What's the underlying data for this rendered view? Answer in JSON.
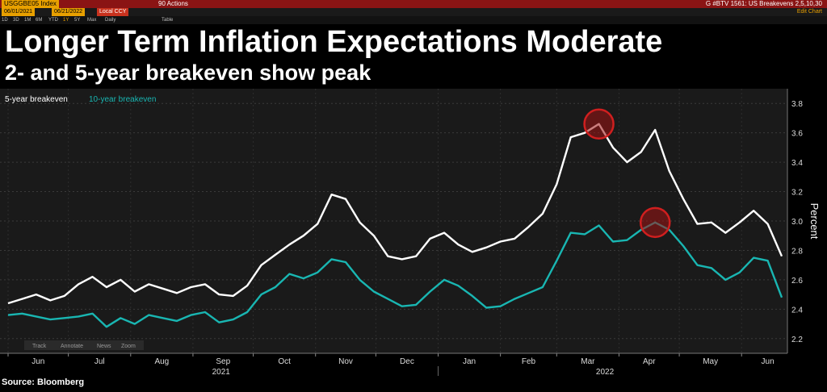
{
  "toolbar": {
    "ticker": "USGGBE05 Index",
    "actions": "90 Actions",
    "right_text": "G #BTV 1561: US Breakevens 2,5,10,30",
    "date_start": "06/01/2021",
    "date_end": "06/21/2022",
    "currency": "Local CCY",
    "periods": [
      "1D",
      "3D",
      "1M",
      "6M",
      "YTD",
      "1Y",
      "5Y",
      "Max"
    ],
    "frequency": "Daily",
    "table_label": "Table",
    "edit_chart": "Edit Chart",
    "tools": [
      "Track",
      "Annotate",
      "News",
      "Zoom"
    ]
  },
  "header": {
    "title": "Longer Term Inflation Expectations Moderate",
    "subtitle": "2- and 5-year breakeven show peak"
  },
  "footer": {
    "source": "Source: Bloomberg"
  },
  "colors": {
    "five_year": "#ffffff",
    "ten_year": "#19b6b2",
    "highlight": "#d01f1f",
    "background": "#000000",
    "plot_bg": "#1a1a1a"
  },
  "chart_data": {
    "type": "line",
    "title": "Longer Term Inflation Expectations Moderate",
    "subtitle": "2- and 5-year breakeven show peak",
    "ylabel": "Percent",
    "xlabel": "",
    "ylim": [
      2.1,
      3.9
    ],
    "yticks": [
      2.2,
      2.4,
      2.6,
      2.8,
      3.0,
      3.2,
      3.4,
      3.6,
      3.8
    ],
    "ytick_labels": [
      "2.2",
      "2.4",
      "2.6",
      "2.8",
      "3.0",
      "3.2",
      "3.4",
      "3.6",
      "3.8"
    ],
    "xlim": [
      "2021-06-01",
      "2022-06-21"
    ],
    "x_months": [
      {
        "label": "Jun",
        "date": "2021-06-01"
      },
      {
        "label": "Jul",
        "date": "2021-07-01"
      },
      {
        "label": "Aug",
        "date": "2021-08-01"
      },
      {
        "label": "Sep",
        "date": "2021-09-01"
      },
      {
        "label": "Oct",
        "date": "2021-10-01"
      },
      {
        "label": "Nov",
        "date": "2021-11-01"
      },
      {
        "label": "Dec",
        "date": "2021-12-01"
      },
      {
        "label": "Jan",
        "date": "2022-01-01"
      },
      {
        "label": "Feb",
        "date": "2022-02-01"
      },
      {
        "label": "Mar",
        "date": "2022-03-01"
      },
      {
        "label": "Apr",
        "date": "2022-04-01"
      },
      {
        "label": "May",
        "date": "2022-05-01"
      },
      {
        "label": "Jun",
        "date": "2022-06-01"
      }
    ],
    "x_years": [
      {
        "label": "2021",
        "date": "2021-09-15"
      },
      {
        "label": "2022",
        "date": "2022-03-25"
      }
    ],
    "legend_position": "top-left",
    "grid": true,
    "series": [
      {
        "name": "5-year breakeven",
        "color": "#ffffff",
        "points": [
          [
            "2021-06-01",
            2.44
          ],
          [
            "2021-06-08",
            2.47
          ],
          [
            "2021-06-15",
            2.5
          ],
          [
            "2021-06-22",
            2.46
          ],
          [
            "2021-06-29",
            2.49
          ],
          [
            "2021-07-06",
            2.57
          ],
          [
            "2021-07-13",
            2.62
          ],
          [
            "2021-07-20",
            2.55
          ],
          [
            "2021-07-27",
            2.6
          ],
          [
            "2021-08-03",
            2.52
          ],
          [
            "2021-08-10",
            2.57
          ],
          [
            "2021-08-17",
            2.54
          ],
          [
            "2021-08-24",
            2.51
          ],
          [
            "2021-08-31",
            2.55
          ],
          [
            "2021-09-07",
            2.57
          ],
          [
            "2021-09-14",
            2.5
          ],
          [
            "2021-09-21",
            2.49
          ],
          [
            "2021-09-28",
            2.56
          ],
          [
            "2021-10-05",
            2.7
          ],
          [
            "2021-10-12",
            2.77
          ],
          [
            "2021-10-19",
            2.84
          ],
          [
            "2021-10-26",
            2.9
          ],
          [
            "2021-11-02",
            2.98
          ],
          [
            "2021-11-09",
            3.18
          ],
          [
            "2021-11-16",
            3.15
          ],
          [
            "2021-11-23",
            2.99
          ],
          [
            "2021-11-30",
            2.9
          ],
          [
            "2021-12-07",
            2.76
          ],
          [
            "2021-12-14",
            2.74
          ],
          [
            "2021-12-21",
            2.76
          ],
          [
            "2021-12-28",
            2.88
          ],
          [
            "2022-01-04",
            2.92
          ],
          [
            "2022-01-11",
            2.84
          ],
          [
            "2022-01-18",
            2.79
          ],
          [
            "2022-01-25",
            2.82
          ],
          [
            "2022-02-01",
            2.86
          ],
          [
            "2022-02-08",
            2.88
          ],
          [
            "2022-02-15",
            2.96
          ],
          [
            "2022-02-22",
            3.05
          ],
          [
            "2022-03-01",
            3.25
          ],
          [
            "2022-03-08",
            3.57
          ],
          [
            "2022-03-15",
            3.6
          ],
          [
            "2022-03-22",
            3.66
          ],
          [
            "2022-03-29",
            3.5
          ],
          [
            "2022-04-05",
            3.4
          ],
          [
            "2022-04-12",
            3.47
          ],
          [
            "2022-04-19",
            3.62
          ],
          [
            "2022-04-26",
            3.34
          ],
          [
            "2022-05-03",
            3.15
          ],
          [
            "2022-05-10",
            2.98
          ],
          [
            "2022-05-17",
            2.99
          ],
          [
            "2022-05-24",
            2.92
          ],
          [
            "2022-05-31",
            2.99
          ],
          [
            "2022-06-07",
            3.07
          ],
          [
            "2022-06-14",
            2.98
          ],
          [
            "2022-06-21",
            2.76
          ]
        ]
      },
      {
        "name": "10-year breakeven",
        "color": "#19b6b2",
        "points": [
          [
            "2021-06-01",
            2.36
          ],
          [
            "2021-06-08",
            2.37
          ],
          [
            "2021-06-15",
            2.35
          ],
          [
            "2021-06-22",
            2.33
          ],
          [
            "2021-06-29",
            2.34
          ],
          [
            "2021-07-06",
            2.35
          ],
          [
            "2021-07-13",
            2.37
          ],
          [
            "2021-07-20",
            2.28
          ],
          [
            "2021-07-27",
            2.34
          ],
          [
            "2021-08-03",
            2.3
          ],
          [
            "2021-08-10",
            2.36
          ],
          [
            "2021-08-17",
            2.34
          ],
          [
            "2021-08-24",
            2.32
          ],
          [
            "2021-08-31",
            2.36
          ],
          [
            "2021-09-07",
            2.38
          ],
          [
            "2021-09-14",
            2.31
          ],
          [
            "2021-09-21",
            2.33
          ],
          [
            "2021-09-28",
            2.38
          ],
          [
            "2021-10-05",
            2.5
          ],
          [
            "2021-10-12",
            2.55
          ],
          [
            "2021-10-19",
            2.64
          ],
          [
            "2021-10-26",
            2.61
          ],
          [
            "2021-11-02",
            2.65
          ],
          [
            "2021-11-09",
            2.74
          ],
          [
            "2021-11-16",
            2.72
          ],
          [
            "2021-11-23",
            2.6
          ],
          [
            "2021-11-30",
            2.52
          ],
          [
            "2021-12-07",
            2.47
          ],
          [
            "2021-12-14",
            2.42
          ],
          [
            "2021-12-21",
            2.43
          ],
          [
            "2021-12-28",
            2.52
          ],
          [
            "2022-01-04",
            2.6
          ],
          [
            "2022-01-11",
            2.56
          ],
          [
            "2022-01-18",
            2.49
          ],
          [
            "2022-01-25",
            2.41
          ],
          [
            "2022-02-01",
            2.42
          ],
          [
            "2022-02-08",
            2.47
          ],
          [
            "2022-02-15",
            2.51
          ],
          [
            "2022-02-22",
            2.55
          ],
          [
            "2022-03-01",
            2.73
          ],
          [
            "2022-03-08",
            2.92
          ],
          [
            "2022-03-15",
            2.91
          ],
          [
            "2022-03-22",
            2.97
          ],
          [
            "2022-03-29",
            2.86
          ],
          [
            "2022-04-05",
            2.87
          ],
          [
            "2022-04-12",
            2.94
          ],
          [
            "2022-04-19",
            2.99
          ],
          [
            "2022-04-26",
            2.94
          ],
          [
            "2022-05-03",
            2.83
          ],
          [
            "2022-05-10",
            2.7
          ],
          [
            "2022-05-17",
            2.68
          ],
          [
            "2022-05-24",
            2.6
          ],
          [
            "2022-05-31",
            2.65
          ],
          [
            "2022-06-07",
            2.75
          ],
          [
            "2022-06-14",
            2.73
          ],
          [
            "2022-06-21",
            2.48
          ]
        ]
      }
    ],
    "annotations": [
      {
        "series": "5-year breakeven",
        "date": "2022-03-22",
        "value": 3.66,
        "marker": "circle",
        "color": "#d01f1f"
      },
      {
        "series": "10-year breakeven",
        "date": "2022-04-19",
        "value": 2.99,
        "marker": "circle",
        "color": "#d01f1f"
      }
    ]
  }
}
